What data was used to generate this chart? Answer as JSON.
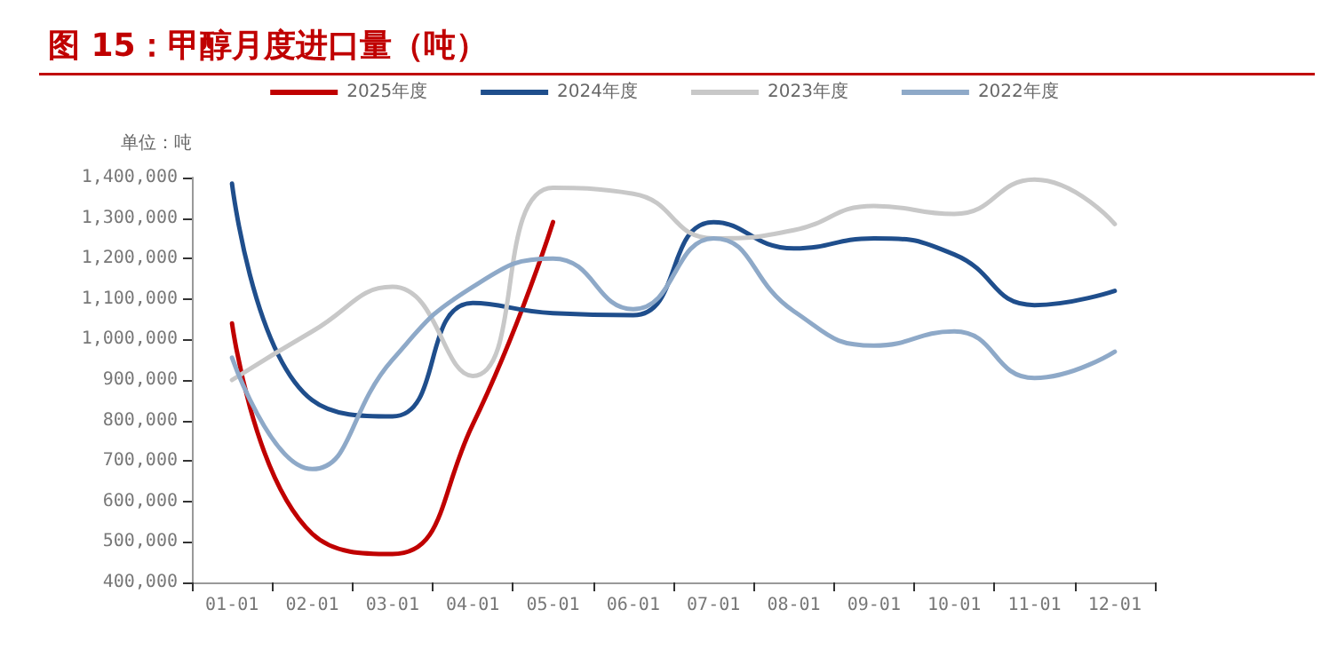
{
  "chart_data": {
    "type": "line",
    "title": "图 15：甲醇月度进口量（吨）",
    "ylabel": "单位：吨",
    "categories": [
      "01-01",
      "02-01",
      "03-01",
      "04-01",
      "05-01",
      "06-01",
      "07-01",
      "08-01",
      "09-01",
      "10-01",
      "11-01",
      "12-01"
    ],
    "series": [
      {
        "name": "2025年度",
        "color": "#c00000",
        "values": [
          1040000,
          520000,
          470000,
          790000,
          1290000,
          null,
          null,
          null,
          null,
          null,
          null,
          null
        ]
      },
      {
        "name": "2024年度",
        "color": "#1f4e8c",
        "values": [
          1385000,
          850000,
          810000,
          1090000,
          1065000,
          1060000,
          1290000,
          1225000,
          1250000,
          1210000,
          1085000,
          1120000
        ]
      },
      {
        "name": "2023年度",
        "color": "#c8c8c8",
        "values": [
          900000,
          1020000,
          1130000,
          910000,
          1375000,
          1360000,
          1250000,
          1270000,
          1330000,
          1310000,
          1395000,
          1285000
        ]
      },
      {
        "name": "2022年度",
        "color": "#8ea9c8",
        "values": [
          955000,
          680000,
          950000,
          1130000,
          1200000,
          1075000,
          1250000,
          1070000,
          985000,
          1020000,
          905000,
          970000
        ]
      }
    ],
    "ylim": [
      400000,
      1400000
    ],
    "yticks": [
      {
        "value": 400000,
        "label": "400,000"
      },
      {
        "value": 500000,
        "label": "500,000"
      },
      {
        "value": 600000,
        "label": "600,000"
      },
      {
        "value": 700000,
        "label": "700,000"
      },
      {
        "value": 800000,
        "label": "800,000"
      },
      {
        "value": 900000,
        "label": "900,000"
      },
      {
        "value": 1000000,
        "label": "1,000,000"
      },
      {
        "value": 1100000,
        "label": "1,100,000"
      },
      {
        "value": 1200000,
        "label": "1,200,000"
      },
      {
        "value": 1300000,
        "label": "1,300,000"
      },
      {
        "value": 1400000,
        "label": "1,400,000"
      }
    ],
    "grid": false,
    "legend": "top",
    "marker": "none",
    "line_style": "solid"
  }
}
